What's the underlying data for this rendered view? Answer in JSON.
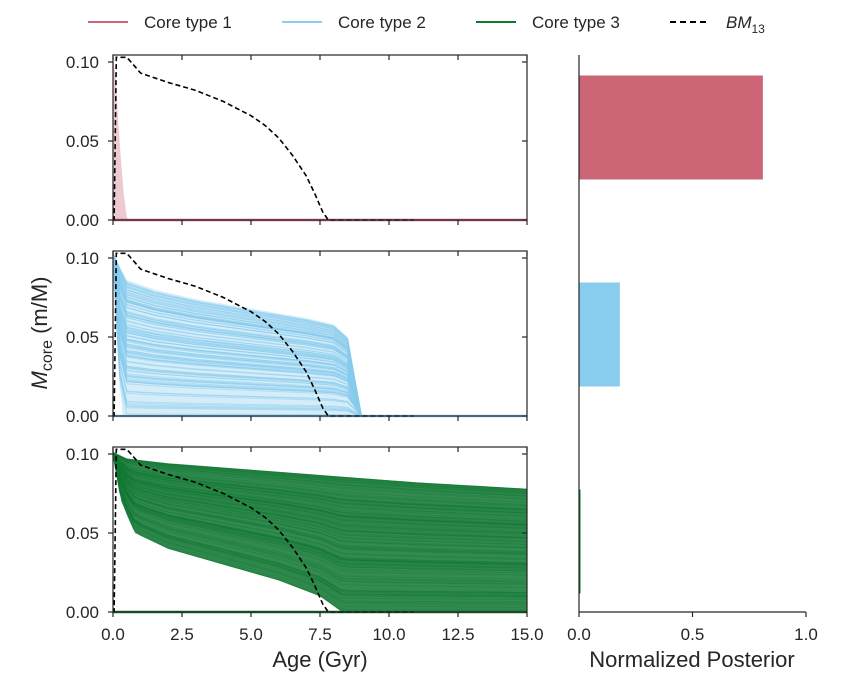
{
  "legend": {
    "items": [
      {
        "label": "Core type 1",
        "color": "#CC6677",
        "style": "solid"
      },
      {
        "label": "Core type 2",
        "color": "#88CCEE",
        "style": "solid"
      },
      {
        "label": "Core type 3",
        "color": "#117733",
        "style": "solid"
      },
      {
        "label_base": "BM",
        "label_sub": "13",
        "color": "#000000",
        "style": "dashed"
      }
    ]
  },
  "chart_data": [
    {
      "type": "line",
      "panel": "core-type-1",
      "xlabel": "",
      "ylabel": "",
      "xlim": [
        0,
        15
      ],
      "ylim": [
        0,
        0.1
      ],
      "xticks": [
        "0.0",
        "2.5",
        "5.0",
        "7.5",
        "10.0",
        "12.5",
        "15.0"
      ],
      "yticks": [
        "0.00",
        "0.05",
        "0.10"
      ],
      "series": [
        {
          "name": "Core type 1",
          "color": "#CC6677",
          "envelope_upper": [
            [
              0.0,
              0.103
            ],
            [
              0.1,
              0.09
            ],
            [
              0.2,
              0.06
            ],
            [
              0.3,
              0.035
            ],
            [
              0.4,
              0.015
            ],
            [
              0.5,
              0.002
            ],
            [
              0.55,
              0.0
            ],
            [
              15.0,
              0.0
            ]
          ],
          "envelope_lower": [
            [
              0.0,
              0.0
            ],
            [
              15.0,
              0.0
            ]
          ]
        },
        {
          "name": "BM13",
          "color": "#000000",
          "x": [
            0.0,
            0.04,
            0.08,
            0.12,
            0.5,
            0.8,
            1.0,
            2.0,
            3.0,
            4.0,
            5.0,
            5.5,
            6.0,
            6.5,
            7.0,
            7.3,
            7.6,
            7.8,
            10.9
          ],
          "y": [
            0.0,
            0.0,
            0.05,
            0.103,
            0.103,
            0.097,
            0.093,
            0.087,
            0.082,
            0.075,
            0.066,
            0.06,
            0.052,
            0.041,
            0.028,
            0.017,
            0.005,
            0.0,
            0.0
          ]
        }
      ]
    },
    {
      "type": "line",
      "panel": "core-type-2",
      "xlabel": "",
      "ylabel": "M_core (m/M)",
      "xlim": [
        0,
        15
      ],
      "ylim": [
        0,
        0.1
      ],
      "xticks": [
        "0.0",
        "2.5",
        "5.0",
        "7.5",
        "10.0",
        "12.5",
        "15.0"
      ],
      "yticks": [
        "0.00",
        "0.05",
        "0.10"
      ],
      "series": [
        {
          "name": "Core type 2",
          "color": "#88CCEE",
          "envelope_upper": [
            [
              0.0,
              0.103
            ],
            [
              0.5,
              0.086
            ],
            [
              1.5,
              0.08
            ],
            [
              3.0,
              0.074
            ],
            [
              5.0,
              0.068
            ],
            [
              7.0,
              0.062
            ],
            [
              8.0,
              0.058
            ],
            [
              8.5,
              0.05
            ],
            [
              8.8,
              0.02
            ],
            [
              9.0,
              0.0
            ],
            [
              15.0,
              0.0
            ]
          ],
          "envelope_lower": [
            [
              0.0,
              0.1
            ],
            [
              0.1,
              0.06
            ],
            [
              0.2,
              0.03
            ],
            [
              0.35,
              0.0
            ],
            [
              15.0,
              0.0
            ]
          ]
        },
        {
          "name": "BM13",
          "color": "#000000",
          "x": [
            0.0,
            0.04,
            0.08,
            0.12,
            0.5,
            0.8,
            1.0,
            2.0,
            3.0,
            4.0,
            5.0,
            5.5,
            6.0,
            6.5,
            7.0,
            7.3,
            7.6,
            7.8,
            10.9
          ],
          "y": [
            0.0,
            0.0,
            0.05,
            0.103,
            0.103,
            0.097,
            0.093,
            0.087,
            0.082,
            0.075,
            0.066,
            0.06,
            0.052,
            0.041,
            0.028,
            0.017,
            0.005,
            0.0,
            0.0
          ]
        }
      ]
    },
    {
      "type": "line",
      "panel": "core-type-3",
      "xlabel": "Age (Gyr)",
      "ylabel": "",
      "xlim": [
        0,
        15
      ],
      "ylim": [
        0,
        0.1
      ],
      "xticks": [
        "0.0",
        "2.5",
        "5.0",
        "7.5",
        "10.0",
        "12.5",
        "15.0"
      ],
      "yticks": [
        "0.00",
        "0.05",
        "0.10"
      ],
      "series": [
        {
          "name": "Core type 3",
          "color": "#117733",
          "envelope_upper": [
            [
              0.0,
              0.101
            ],
            [
              0.5,
              0.097
            ],
            [
              2.0,
              0.094
            ],
            [
              5.0,
              0.09
            ],
            [
              8.0,
              0.086
            ],
            [
              11.0,
              0.082
            ],
            [
              15.0,
              0.078
            ]
          ],
          "envelope_lower": [
            [
              0.0,
              0.1
            ],
            [
              0.3,
              0.07
            ],
            [
              0.8,
              0.05
            ],
            [
              2.0,
              0.04
            ],
            [
              4.0,
              0.03
            ],
            [
              6.0,
              0.02
            ],
            [
              7.5,
              0.01
            ],
            [
              8.3,
              0.0
            ],
            [
              15.0,
              0.0
            ]
          ]
        },
        {
          "name": "BM13",
          "color": "#000000",
          "x": [
            0.0,
            0.04,
            0.08,
            0.12,
            0.5,
            0.8,
            1.0,
            2.0,
            3.0,
            4.0,
            5.0,
            5.5,
            6.0,
            6.5,
            7.0,
            7.3,
            7.6,
            7.8,
            10.9
          ],
          "y": [
            0.0,
            0.0,
            0.05,
            0.103,
            0.103,
            0.097,
            0.093,
            0.087,
            0.082,
            0.075,
            0.066,
            0.06,
            0.052,
            0.041,
            0.028,
            0.017,
            0.005,
            0.0,
            0.0
          ]
        }
      ]
    },
    {
      "type": "bar",
      "orientation": "horizontal",
      "panel": "posterior",
      "xlabel": "Normalized Posterior",
      "ylabel": "",
      "xlim": [
        0,
        1.0
      ],
      "xticks": [
        "0.0",
        "0.5",
        "1.0"
      ],
      "categories": [
        "Core type 1",
        "Core type 2",
        "Core type 3"
      ],
      "values": [
        0.81,
        0.18,
        0.005
      ],
      "colors": [
        "#CC6677",
        "#88CCEE",
        "#117733"
      ]
    }
  ]
}
